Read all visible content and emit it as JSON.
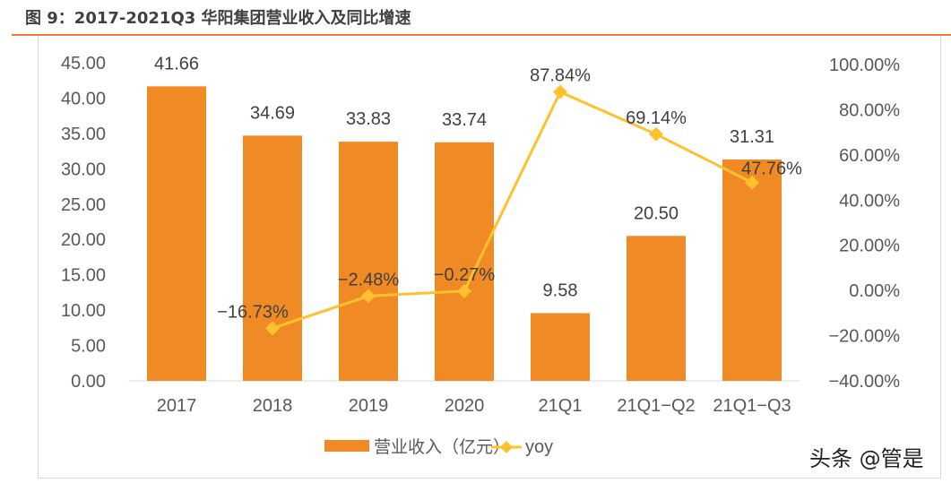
{
  "title": "图 9：2017-2021Q3 华阳集团营业收入及同比增速",
  "watermark": "头条 @管是",
  "chart_data": {
    "type": "bar+line",
    "categories": [
      "2017",
      "2018",
      "2019",
      "2020",
      "21Q1",
      "21Q1−Q2",
      "21Q1−Q3"
    ],
    "series": [
      {
        "name": "营业收入（亿元）",
        "type": "bar",
        "axis": "left",
        "color": "#F08A24",
        "values": [
          41.66,
          34.69,
          33.83,
          33.74,
          9.58,
          20.5,
          31.31
        ],
        "labels": [
          "41.66",
          "34.69",
          "33.83",
          "33.74",
          "9.58",
          "20.50",
          "31.31"
        ]
      },
      {
        "name": "yoy",
        "type": "line",
        "axis": "right",
        "color": "#FFC12E",
        "values": [
          null,
          -16.73,
          -2.48,
          -0.27,
          87.84,
          69.14,
          47.76
        ],
        "labels": [
          "",
          "−16.73%",
          "−2.48%",
          "−0.27%",
          "87.84%",
          "69.14%",
          "47.76%"
        ]
      }
    ],
    "left_axis": {
      "ylim": [
        0,
        45
      ],
      "ticks": [
        "0.00",
        "5.00",
        "10.00",
        "15.00",
        "20.00",
        "25.00",
        "30.00",
        "35.00",
        "40.00",
        "45.00"
      ]
    },
    "right_axis": {
      "ylim": [
        -40,
        100
      ],
      "ticks": [
        "−40.00%",
        "−20.00%",
        "0.00%",
        "20.00%",
        "40.00%",
        "60.00%",
        "80.00%",
        "100.00%"
      ]
    },
    "grid": false,
    "legend": "bottom"
  }
}
